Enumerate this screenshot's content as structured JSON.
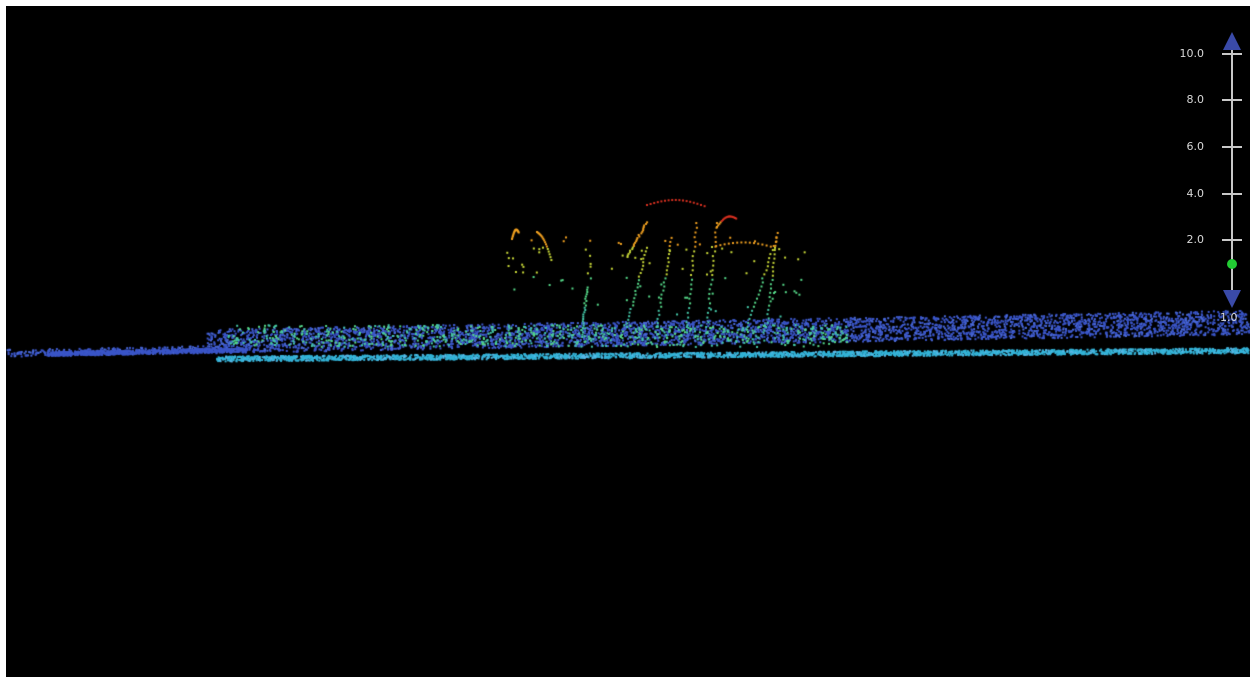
{
  "viewer": {
    "background": "#000000",
    "frame_color": "#ffffff"
  },
  "height_scale": {
    "ticks": [
      "10.0",
      "8.0",
      "6.0",
      "4.0",
      "2.0"
    ],
    "min_label": "1.0",
    "tick_values": [
      10.0,
      8.0,
      6.0,
      4.0,
      2.0
    ],
    "slider_value": 1.0,
    "slider_color": "#22cc33",
    "arrow_color": "#3a4aa8",
    "axis_color": "#c8c8c8",
    "up_arrow_icon": "triangle-up-icon",
    "down_arrow_icon": "triangle-down-icon"
  },
  "point_cloud": {
    "colormap": [
      "#3a55c8",
      "#33b4d8",
      "#55d888",
      "#c8d838",
      "#f0a020",
      "#d83020"
    ]
  }
}
